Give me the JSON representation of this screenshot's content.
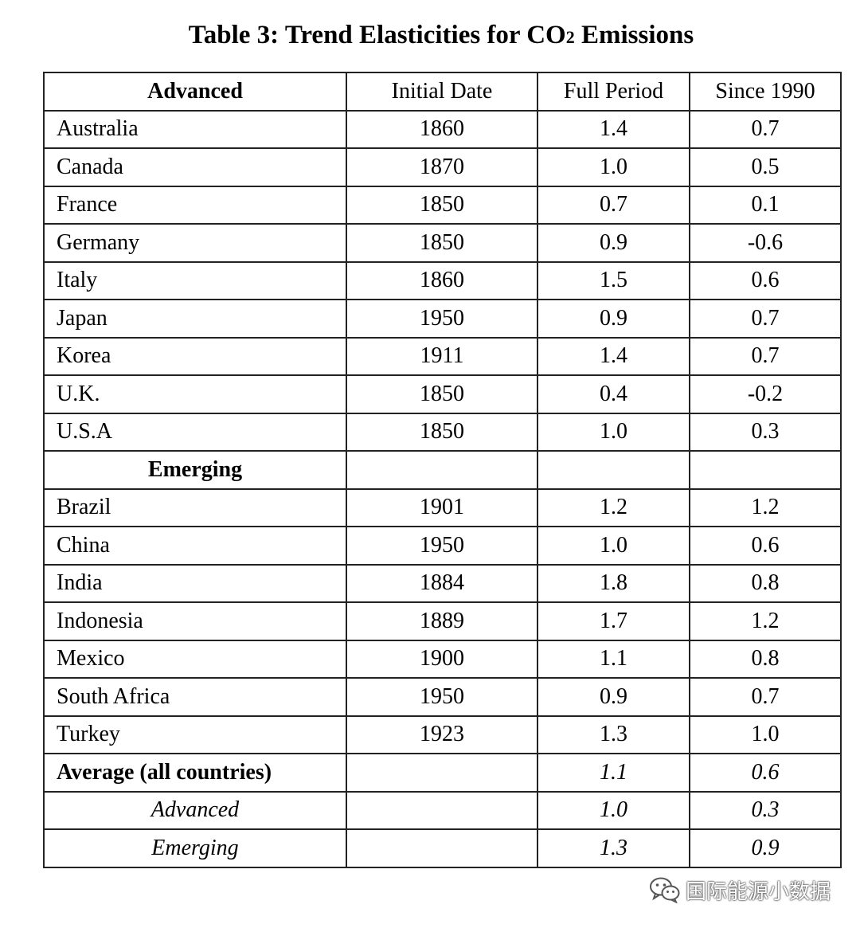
{
  "title": {
    "main": "Table 3: Trend Elasticities for CO",
    "subscript": "2",
    "tail": " Emissions"
  },
  "columns": [
    "Advanced",
    "Initial Date",
    "Full Period",
    "Since 1990"
  ],
  "advanced": [
    {
      "country": "Australia",
      "initial": "1860",
      "full": "1.4",
      "since": "0.7"
    },
    {
      "country": "Canada",
      "initial": "1870",
      "full": "1.0",
      "since": "0.5"
    },
    {
      "country": "France",
      "initial": "1850",
      "full": "0.7",
      "since": "0.1"
    },
    {
      "country": "Germany",
      "initial": "1850",
      "full": "0.9",
      "since": "-0.6"
    },
    {
      "country": "Italy",
      "initial": "1860",
      "full": "1.5",
      "since": "0.6"
    },
    {
      "country": "Japan",
      "initial": "1950",
      "full": "0.9",
      "since": "0.7"
    },
    {
      "country": "Korea",
      "initial": "1911",
      "full": "1.4",
      "since": "0.7"
    },
    {
      "country": "U.K.",
      "initial": "1850",
      "full": "0.4",
      "since": "-0.2"
    },
    {
      "country": "U.S.A",
      "initial": "1850",
      "full": "1.0",
      "since": "0.3"
    }
  ],
  "emerging_label": "Emerging",
  "emerging": [
    {
      "country": "Brazil",
      "initial": "1901",
      "full": "1.2",
      "since": "1.2"
    },
    {
      "country": "China",
      "initial": "1950",
      "full": "1.0",
      "since": "0.6"
    },
    {
      "country": "India",
      "initial": "1884",
      "full": "1.8",
      "since": "0.8"
    },
    {
      "country": "Indonesia",
      "initial": "1889",
      "full": "1.7",
      "since": "1.2"
    },
    {
      "country": "Mexico",
      "initial": "1900",
      "full": "1.1",
      "since": "0.8"
    },
    {
      "country": "South Africa",
      "initial": "1950",
      "full": "0.9",
      "since": "0.7"
    },
    {
      "country": "Turkey",
      "initial": "1923",
      "full": "1.3",
      "since": "1.0"
    }
  ],
  "averages": [
    {
      "label": "Average (all countries)",
      "full": "1.1",
      "since": "0.6"
    },
    {
      "label": "Advanced",
      "full": "1.0",
      "since": "0.3"
    },
    {
      "label": "Emerging",
      "full": "1.3",
      "since": "0.9"
    }
  ],
  "watermark": {
    "text": "国际能源小数据",
    "icon": "wechat-icon"
  }
}
